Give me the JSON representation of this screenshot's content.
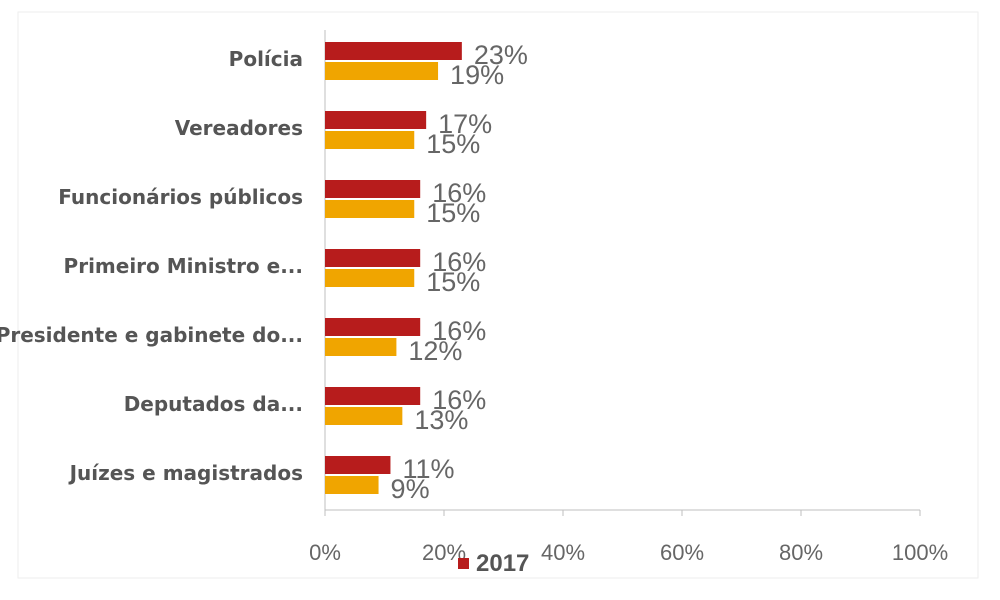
{
  "chart_data": {
    "type": "bar",
    "orientation": "horizontal",
    "categories": [
      "Polícia",
      "Vereadores",
      "Funcionários públicos",
      "Primeiro Ministro e...",
      "Presidente e gabinete do...",
      "Deputados da...",
      "Juízes e magistrados"
    ],
    "series": [
      {
        "name": "2017",
        "color": "#b71c1c",
        "values": [
          23,
          17,
          16,
          16,
          16,
          16,
          11
        ],
        "labels": [
          "23%",
          "17%",
          "16%",
          "16%",
          "16%",
          "16%",
          "11%"
        ]
      },
      {
        "color": "#f0a500",
        "values": [
          19,
          15,
          15,
          15,
          12,
          13,
          9
        ],
        "labels": [
          "19%",
          "15%",
          "15%",
          "15%",
          "12%",
          "13%",
          "9%"
        ]
      }
    ],
    "xlim": [
      0,
      100
    ],
    "xticks": [
      "0%",
      "20%",
      "40%",
      "60%",
      "80%",
      "100%"
    ],
    "legend": {
      "position": "bottom",
      "items": [
        "2017"
      ]
    },
    "grid": false
  }
}
